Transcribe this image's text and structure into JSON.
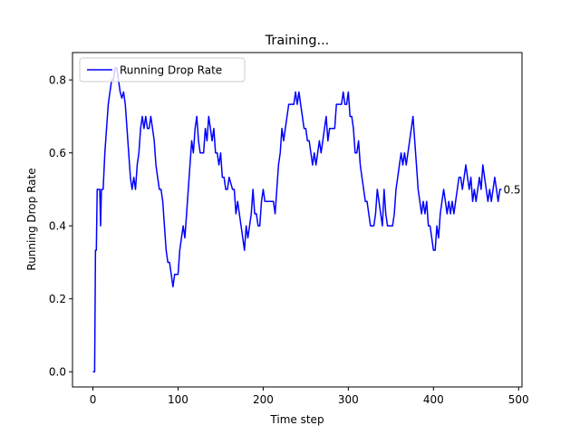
{
  "chart_data": {
    "type": "line",
    "title": "Training...",
    "xlabel": "Time step",
    "ylabel": "Running Drop Rate",
    "x": [
      0,
      2,
      3,
      4,
      5,
      8,
      9,
      10,
      12,
      14,
      16,
      18,
      20,
      22,
      24,
      26,
      28,
      30,
      32,
      34,
      36,
      38,
      40,
      42,
      44,
      46,
      48,
      50,
      52,
      54,
      56,
      58,
      60,
      62,
      64,
      66,
      68,
      70,
      72,
      74,
      76,
      78,
      80,
      82,
      84,
      86,
      88,
      90,
      92,
      94,
      96,
      98,
      100,
      102,
      104,
      106,
      108,
      110,
      112,
      114,
      116,
      118,
      120,
      122,
      124,
      126,
      130,
      132,
      134,
      136,
      138,
      140,
      142,
      144,
      146,
      148,
      150,
      152,
      154,
      156,
      158,
      160,
      164,
      166,
      168,
      170,
      172,
      174,
      176,
      178,
      180,
      182,
      184,
      186,
      188,
      190,
      192,
      194,
      196,
      198,
      200,
      202,
      206,
      212,
      214,
      216,
      218,
      220,
      222,
      224,
      226,
      228,
      230,
      236,
      238,
      240,
      242,
      244,
      246,
      248,
      250,
      252,
      254,
      256,
      258,
      260,
      262,
      264,
      266,
      268,
      270,
      272,
      274,
      276,
      278,
      284,
      286,
      288,
      292,
      294,
      296,
      298,
      300,
      302,
      304,
      306,
      308,
      310,
      312,
      314,
      316,
      318,
      320,
      322,
      324,
      326,
      330,
      332,
      334,
      336,
      338,
      340,
      342,
      344,
      346,
      352,
      354,
      356,
      358,
      360,
      362,
      364,
      366,
      368,
      370,
      372,
      374,
      376,
      378,
      380,
      382,
      384,
      386,
      388,
      390,
      392,
      394,
      396,
      398,
      400,
      402,
      404,
      406,
      408,
      410,
      412,
      414,
      416,
      418,
      420,
      422,
      424,
      426,
      428,
      430,
      432,
      434,
      436,
      438,
      440,
      442,
      444,
      446,
      448,
      450,
      452,
      454,
      456,
      458,
      460,
      462,
      464,
      466,
      468,
      470,
      472,
      474,
      476,
      478,
      480
    ],
    "series": [
      {
        "name": "Running Drop Rate",
        "color": "#0000ff",
        "values": [
          0,
          0,
          0.333,
          0.333,
          0.5,
          0.5,
          0.4,
          0.5,
          0.5,
          0.6,
          0.667,
          0.733,
          0.767,
          0.8,
          0.8,
          0.833,
          0.833,
          0.8,
          0.767,
          0.75,
          0.767,
          0.733,
          0.667,
          0.6,
          0.533,
          0.5,
          0.533,
          0.5,
          0.567,
          0.6,
          0.667,
          0.7,
          0.667,
          0.7,
          0.667,
          0.667,
          0.7,
          0.667,
          0.633,
          0.567,
          0.533,
          0.5,
          0.5,
          0.467,
          0.4,
          0.333,
          0.3,
          0.3,
          0.267,
          0.233,
          0.267,
          0.267,
          0.267,
          0.333,
          0.367,
          0.4,
          0.367,
          0.433,
          0.5,
          0.567,
          0.633,
          0.6,
          0.667,
          0.7,
          0.633,
          0.6,
          0.6,
          0.667,
          0.633,
          0.7,
          0.667,
          0.633,
          0.667,
          0.6,
          0.6,
          0.567,
          0.6,
          0.533,
          0.533,
          0.5,
          0.5,
          0.533,
          0.5,
          0.5,
          0.433,
          0.467,
          0.433,
          0.4,
          0.367,
          0.333,
          0.4,
          0.367,
          0.4,
          0.433,
          0.5,
          0.433,
          0.433,
          0.4,
          0.4,
          0.467,
          0.5,
          0.467,
          0.467,
          0.467,
          0.433,
          0.5,
          0.567,
          0.6,
          0.667,
          0.633,
          0.667,
          0.7,
          0.733,
          0.733,
          0.767,
          0.733,
          0.767,
          0.733,
          0.7,
          0.667,
          0.667,
          0.633,
          0.633,
          0.6,
          0.567,
          0.6,
          0.567,
          0.6,
          0.633,
          0.6,
          0.633,
          0.667,
          0.7,
          0.633,
          0.667,
          0.667,
          0.733,
          0.733,
          0.733,
          0.767,
          0.733,
          0.733,
          0.767,
          0.7,
          0.7,
          0.667,
          0.6,
          0.6,
          0.633,
          0.567,
          0.533,
          0.5,
          0.467,
          0.467,
          0.433,
          0.4,
          0.4,
          0.433,
          0.5,
          0.467,
          0.433,
          0.4,
          0.5,
          0.433,
          0.4,
          0.4,
          0.433,
          0.5,
          0.533,
          0.567,
          0.6,
          0.567,
          0.6,
          0.567,
          0.6,
          0.633,
          0.667,
          0.7,
          0.633,
          0.567,
          0.5,
          0.467,
          0.433,
          0.467,
          0.433,
          0.467,
          0.4,
          0.4,
          0.367,
          0.333,
          0.333,
          0.4,
          0.367,
          0.433,
          0.467,
          0.5,
          0.467,
          0.433,
          0.467,
          0.433,
          0.467,
          0.433,
          0.467,
          0.5,
          0.533,
          0.533,
          0.5,
          0.533,
          0.567,
          0.533,
          0.5,
          0.533,
          0.467,
          0.5,
          0.467,
          0.5,
          0.533,
          0.5,
          0.567,
          0.533,
          0.5,
          0.467,
          0.5,
          0.467,
          0.5,
          0.533,
          0.5,
          0.467,
          0.5,
          0.5
        ]
      }
    ],
    "annotations": [
      {
        "x": 480,
        "y": 0.5,
        "text": "0.5"
      }
    ],
    "xlim": [
      -24,
      504
    ],
    "ylim": [
      -0.0417,
      0.875
    ],
    "xticks": [
      0,
      100,
      200,
      300,
      400,
      500
    ],
    "yticks": [
      {
        "value": 0,
        "label": "0.0"
      },
      0.2,
      0.4,
      0.6,
      0.8
    ],
    "legend": "upper left"
  }
}
